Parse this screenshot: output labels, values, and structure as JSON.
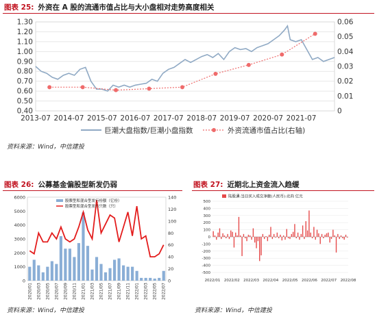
{
  "fig25": {
    "number": "图表 25:",
    "title": "外资在 A 股的流通市值占比与大小盘相对走势高度相关",
    "source": "资料来源：Wind，中信建投",
    "chart_data": {
      "type": "line",
      "title": "外资在 A 股的流通市值占比与大小盘相对走势高度相关",
      "x_ticks": [
        "2013-07",
        "2014-07",
        "2015-07",
        "2016-07",
        "2017-07",
        "2018-07",
        "2019-07",
        "2020-07",
        "2021-07"
      ],
      "ylim_left": [
        0.4,
        1.3
      ],
      "yticks_left": [
        "0.40",
        "0.50",
        "0.60",
        "0.70",
        "0.80",
        "0.90",
        "1.00",
        "1.10",
        "1.20",
        "1.30"
      ],
      "ylim_right": [
        0,
        0.06
      ],
      "yticks_right": [
        "0",
        "0.01",
        "0.02",
        "0.03",
        "0.04",
        "0.05",
        "0.06"
      ],
      "grid": true,
      "legend_position": "bottom",
      "series": [
        {
          "name": "巨潮大盘指数/巨潮小盘指数",
          "axis": "left",
          "color": "#8fa9c4",
          "x": [
            "2013-07",
            "2013-09",
            "2013-11",
            "2014-01",
            "2014-03",
            "2014-05",
            "2014-07",
            "2014-09",
            "2014-11",
            "2015-01",
            "2015-03",
            "2015-05",
            "2015-07",
            "2015-09",
            "2015-11",
            "2016-01",
            "2016-03",
            "2016-05",
            "2016-07",
            "2016-09",
            "2016-11",
            "2017-01",
            "2017-03",
            "2017-05",
            "2017-07",
            "2017-09",
            "2017-11",
            "2018-01",
            "2018-03",
            "2018-05",
            "2018-07",
            "2018-09",
            "2018-11",
            "2019-01",
            "2019-03",
            "2019-05",
            "2019-07",
            "2019-09",
            "2019-11",
            "2020-01",
            "2020-03",
            "2020-05",
            "2020-07",
            "2020-09",
            "2020-11",
            "2021-01",
            "2021-02",
            "2021-03",
            "2021-05",
            "2021-07",
            "2021-09",
            "2021-11",
            "2022-01",
            "2022-03",
            "2022-05",
            "2022-07"
          ],
          "values": [
            0.85,
            0.8,
            0.78,
            0.74,
            0.72,
            0.76,
            0.78,
            0.76,
            0.82,
            0.84,
            0.7,
            0.62,
            0.62,
            0.6,
            0.66,
            0.64,
            0.66,
            0.64,
            0.66,
            0.67,
            0.68,
            0.72,
            0.7,
            0.78,
            0.82,
            0.84,
            0.88,
            0.92,
            0.89,
            0.92,
            0.95,
            0.97,
            0.94,
            0.98,
            0.92,
            1.0,
            1.04,
            1.02,
            1.03,
            1.0,
            1.04,
            1.06,
            1.08,
            1.12,
            1.16,
            1.22,
            1.26,
            1.12,
            1.1,
            1.12,
            1.02,
            0.92,
            0.94,
            0.9,
            0.92,
            0.94
          ]
        },
        {
          "name": "外资流通市值占比(右轴)",
          "axis": "right",
          "color": "#ef6b6b",
          "x": [
            "2013-12",
            "2014-12",
            "2015-12",
            "2016-12",
            "2017-12",
            "2018-12",
            "2019-12",
            "2020-12",
            "2021-12"
          ],
          "values": [
            0.016,
            0.016,
            0.014,
            0.015,
            0.016,
            0.025,
            0.031,
            0.038,
            0.052
          ]
        }
      ]
    }
  },
  "fig26": {
    "number": "图表 26:",
    "title": "公募基金偏股型新发仍弱",
    "source": "资料来源：Wind，中信建投",
    "chart_data": {
      "type": "bar",
      "categories": [
        "2020/01",
        "2020/02",
        "2020/03",
        "2020/04",
        "2020/05",
        "2020/06",
        "2020/07",
        "2020/08",
        "2020/09",
        "2020/10",
        "2020/11",
        "2020/12",
        "2021/01",
        "2021/02",
        "2021/03",
        "2021/04",
        "2021/05",
        "2021/06",
        "2021/07",
        "2021/08",
        "2021/09",
        "2021/10",
        "2021/11",
        "2021/12",
        "2022/01",
        "2022/02",
        "2022/03",
        "2022/04",
        "2022/05",
        "2022/06",
        "2022/07"
      ],
      "x_tick_labels": [
        "2020/01",
        "2020/03",
        "2020/05",
        "2020/07",
        "2020/09",
        "2020/11",
        "2021/01",
        "2021/03",
        "2021/05",
        "2021/07",
        "2021/09",
        "2021/11",
        "2022/01",
        "2022/03",
        "2022/05",
        "2022/07"
      ],
      "ylim_left": [
        0,
        6000
      ],
      "yticks_left": [
        "0",
        "1000",
        "2000",
        "3000",
        "4000",
        "5000",
        "6000"
      ],
      "ylim_right": [
        0,
        140
      ],
      "yticks_right": [
        "0",
        "20",
        "40",
        "60",
        "80",
        "100",
        "120",
        "140"
      ],
      "legend_position": "top-left",
      "series": [
        {
          "name": "股票型和混合型发行份额（亿份）",
          "axis": "left",
          "type": "bar",
          "color": "#8aaed6",
          "values": [
            1000,
            1500,
            1100,
            600,
            1000,
            1400,
            1200,
            3200,
            2300,
            2300,
            1700,
            2700,
            4900,
            2500,
            800,
            1700,
            1200,
            600,
            900,
            1500,
            1600,
            1100,
            1000,
            1000,
            700,
            200,
            200,
            200,
            150,
            200,
            700
          ]
        },
        {
          "name": "股票型和混合型发行只数（只）",
          "axis": "right",
          "type": "line",
          "color": "#e31b1b",
          "values": [
            50,
            45,
            80,
            65,
            65,
            80,
            70,
            90,
            70,
            65,
            70,
            90,
            115,
            85,
            70,
            135,
            80,
            95,
            110,
            105,
            65,
            90,
            115,
            75,
            125,
            70,
            75,
            40,
            40,
            45,
            60
          ]
        }
      ]
    }
  },
  "fig27": {
    "number": "图表 27:",
    "title": "近期北上资金流入趋缓",
    "source": "资料来源：Wind，中信建投",
    "chart_data": {
      "type": "bar",
      "x_tick_labels": [
        "2022/01",
        "2022/02",
        "2022/03",
        "2022/04",
        "2022/05",
        "2022/06",
        "2022/07",
        "2022/08"
      ],
      "ylim": [
        -500,
        500
      ],
      "yticks": [
        "-500",
        "-400",
        "-300",
        "-200",
        "-100",
        "0",
        "100",
        "200",
        "300",
        "400",
        "500"
      ],
      "legend_position": "top",
      "series": [
        {
          "name": "陆股通:当日买入成交净额(人民币):北向 亿元",
          "color": "#e64a4a",
          "values": [
            80,
            20,
            -40,
            60,
            120,
            -30,
            50,
            20,
            -20,
            40,
            -30,
            90,
            70,
            -150,
            60,
            20,
            280,
            20,
            -270,
            40,
            -20,
            -60,
            30,
            20,
            -40,
            120,
            -80,
            -160,
            -60,
            -340,
            -260,
            40,
            -30,
            10,
            -60,
            30,
            140,
            -30,
            40,
            -10,
            60,
            -20,
            30,
            -50,
            20,
            -40,
            110,
            -20,
            -30,
            40,
            70,
            180,
            -20,
            60,
            -40,
            40,
            160,
            -30,
            220,
            90,
            370,
            60,
            -20,
            140,
            -40,
            100,
            50,
            -100,
            40,
            -20,
            30,
            50,
            60,
            -80,
            -30,
            100,
            20,
            -220,
            40,
            -30,
            20,
            -20,
            -40,
            30,
            -10
          ]
        }
      ]
    }
  }
}
